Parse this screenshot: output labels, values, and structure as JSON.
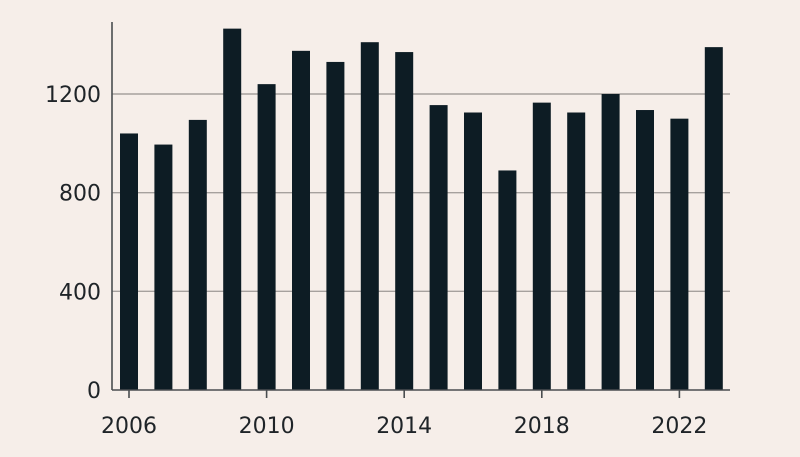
{
  "colors": {
    "background": "#f6eee9",
    "bar": "#0d1c24",
    "grid": "#a6a19e",
    "axis": "#4a4d50",
    "text": "#1f2428"
  },
  "chart_data": {
    "type": "bar",
    "title": "",
    "xlabel": "",
    "ylabel": "",
    "categories": [
      "2006",
      "2007",
      "2008",
      "2009",
      "2010",
      "2011",
      "2012",
      "2013",
      "2014",
      "2015",
      "2016",
      "2017",
      "2018",
      "2019",
      "2020",
      "2021",
      "2022",
      "2023"
    ],
    "values": [
      1040,
      995,
      1095,
      1465,
      1240,
      1375,
      1330,
      1410,
      1370,
      1155,
      1125,
      890,
      1165,
      1125,
      1200,
      1135,
      1100,
      1390
    ],
    "ylim": [
      0,
      1500
    ],
    "y_ticks": [
      {
        "value": 0,
        "label": "0"
      },
      {
        "value": 400,
        "label": "400"
      },
      {
        "value": 800,
        "label": "800"
      },
      {
        "value": 1200,
        "label": "1200"
      }
    ],
    "x_tick_labels": [
      "2006",
      "2010",
      "2014",
      "2018",
      "2022"
    ],
    "grid": "horizontal",
    "legend": "none"
  }
}
